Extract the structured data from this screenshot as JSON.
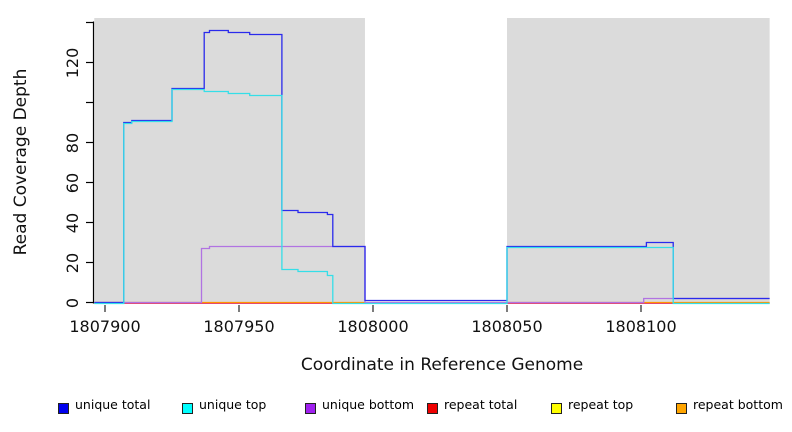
{
  "figure": {
    "background": "#FFFFFF",
    "panel_color": "#DBDBDB"
  },
  "y_axis": {
    "title": "Read Coverage Depth",
    "ticks": [
      {
        "value": 0,
        "label": "0"
      },
      {
        "value": 20,
        "label": "20"
      },
      {
        "value": 40,
        "label": "40"
      },
      {
        "value": 60,
        "label": "60"
      },
      {
        "value": 80,
        "label": "80"
      },
      {
        "value": 100,
        "label": ""
      },
      {
        "value": 120,
        "label": "120"
      },
      {
        "value": 140,
        "label": ""
      }
    ]
  },
  "x_axis": {
    "title": "Coordinate in Reference Genome",
    "ticks": [
      {
        "value": 1807900,
        "label": "1807900"
      },
      {
        "value": 1807950,
        "label": "1807950"
      },
      {
        "value": 1808000,
        "label": "1808000"
      },
      {
        "value": 1808050,
        "label": "1808050"
      },
      {
        "value": 1808100,
        "label": "1808100"
      }
    ]
  },
  "chart_data": {
    "type": "line",
    "title": "",
    "xlabel": "Coordinate in Reference Genome",
    "ylabel": "Read Coverage Depth",
    "xlim": [
      1807896,
      1808148
    ],
    "ylim": [
      0,
      142
    ],
    "grid": false,
    "step_interpolation": true,
    "legend_position": "bottom",
    "background": {
      "panel_color": "#DBDBDB",
      "white_gap": {
        "start": 1807997,
        "end": 1808050,
        "color": "#FFFFFF"
      }
    },
    "series": [
      {
        "name": "repeat top",
        "color": "#FFE900",
        "offset": 0.5,
        "steps": [
          [
            1807896,
            0
          ]
        ]
      },
      {
        "name": "repeat total",
        "color": "#E0407E",
        "offset": 0.8,
        "steps": [
          [
            1807896,
            0
          ]
        ]
      },
      {
        "name": "repeat bottom",
        "color": "#FF9400",
        "offset": 0,
        "steps": [
          [
            1807896,
            0
          ]
        ]
      },
      {
        "name": "unique bottom",
        "color": "#B173E2",
        "offset": 0,
        "steps": [
          [
            1807896,
            0
          ],
          [
            1807936,
            27
          ],
          [
            1807939,
            28
          ],
          [
            1807997,
            0
          ],
          [
            1808101,
            2
          ]
        ]
      },
      {
        "name": "unique total",
        "color": "#2A2AEC",
        "offset": 0,
        "steps": [
          [
            1807896,
            0
          ],
          [
            1807907,
            90
          ],
          [
            1807910,
            91
          ],
          [
            1807925,
            107
          ],
          [
            1807937,
            135
          ],
          [
            1807939,
            136
          ],
          [
            1807946,
            135
          ],
          [
            1807954,
            134
          ],
          [
            1807966,
            46
          ],
          [
            1807972,
            45
          ],
          [
            1807983,
            44
          ],
          [
            1807985,
            28
          ],
          [
            1807997,
            1
          ],
          [
            1808050,
            28
          ],
          [
            1808102,
            30
          ],
          [
            1808112,
            2
          ]
        ]
      },
      {
        "name": "unique top",
        "color": "#35DEE8",
        "offset": 1,
        "steps": [
          [
            1807896,
            0
          ],
          [
            1807907,
            90
          ],
          [
            1807910,
            91
          ],
          [
            1807925,
            107
          ],
          [
            1807937,
            106
          ],
          [
            1807946,
            105
          ],
          [
            1807954,
            104
          ],
          [
            1807966,
            17
          ],
          [
            1807972,
            16
          ],
          [
            1807983,
            14
          ],
          [
            1807985,
            0
          ],
          [
            1808050,
            28
          ],
          [
            1808112,
            0
          ]
        ]
      }
    ]
  },
  "legend": {
    "items": [
      {
        "label": "unique total",
        "color": "#0000EE"
      },
      {
        "label": "unique top",
        "color": "#00FFFF"
      },
      {
        "label": "unique bottom",
        "color": "#A020F0"
      },
      {
        "label": "repeat total",
        "color": "#EE0000"
      },
      {
        "label": "repeat top",
        "color": "#FFFF00"
      },
      {
        "label": "repeat bottom",
        "color": "#FFA500"
      }
    ]
  }
}
